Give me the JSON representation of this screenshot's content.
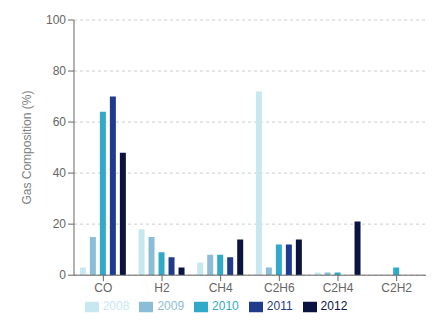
{
  "chart_data": {
    "type": "bar",
    "categories": [
      "CO",
      "H2",
      "CH4",
      "C2H6",
      "C2H4",
      "C2H2"
    ],
    "series": [
      {
        "name": "2008",
        "color": "#c8e8f0",
        "values": [
          3,
          18,
          5,
          72,
          1,
          0
        ]
      },
      {
        "name": "2009",
        "color": "#8bbdd9",
        "values": [
          15,
          15,
          8,
          3,
          1,
          0
        ]
      },
      {
        "name": "2010",
        "color": "#31a9c8",
        "values": [
          64,
          9,
          8,
          12,
          1,
          3
        ]
      },
      {
        "name": "2011",
        "color": "#1f3b8c",
        "values": [
          70,
          7,
          7,
          12,
          0,
          0
        ]
      },
      {
        "name": "2012",
        "color": "#0b1440",
        "values": [
          48,
          3,
          14,
          14,
          21,
          0
        ]
      }
    ],
    "ylabel": "Gas Composition (%)",
    "ylim": [
      0,
      100
    ],
    "yticks": [
      0,
      20,
      40,
      60,
      80,
      100
    ],
    "grid": true,
    "legend": "bottom"
  }
}
